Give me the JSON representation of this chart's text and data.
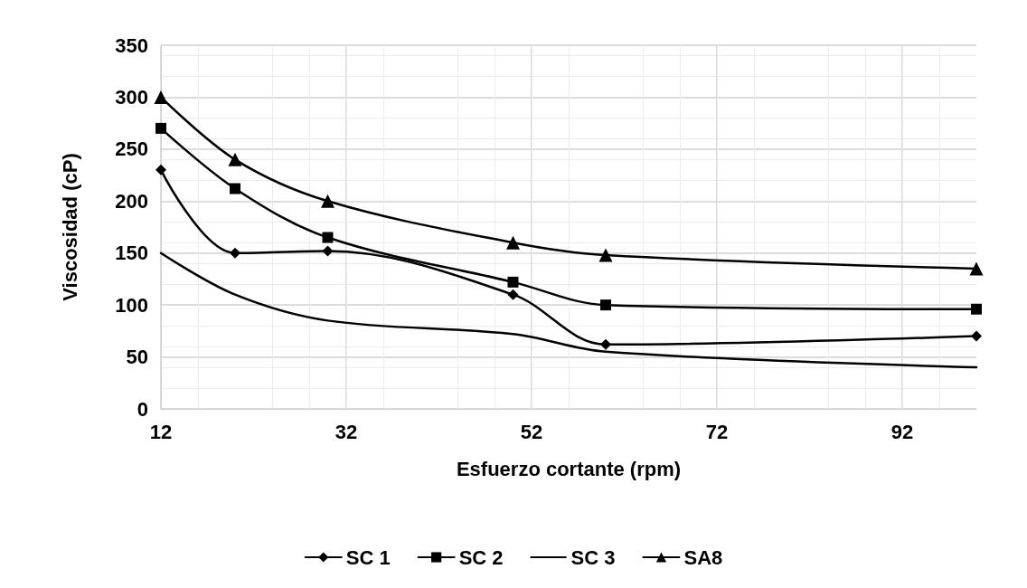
{
  "chart_data": {
    "type": "line",
    "xlabel": "Esfuerzo cortante (rpm)",
    "ylabel": "Viscosidad (cP)",
    "x": [
      12,
      20,
      30,
      50,
      60,
      100
    ],
    "xlim": [
      12,
      100
    ],
    "xticks": [
      12,
      32,
      52,
      72,
      92
    ],
    "ylim": [
      0,
      350
    ],
    "yticks": [
      0,
      50,
      100,
      150,
      200,
      250,
      300,
      350
    ],
    "grid": true,
    "legend": "bottom",
    "line_style": "solid",
    "series": [
      {
        "name": "SC 1",
        "color": "#000000",
        "marker": "diamond",
        "values": [
          230,
          150,
          152,
          110,
          62,
          70
        ]
      },
      {
        "name": "SC 2",
        "color": "#000000",
        "marker": "square",
        "values": [
          270,
          212,
          165,
          122,
          100,
          96
        ]
      },
      {
        "name": "SC 3",
        "color": "#000000",
        "marker": "none",
        "values": [
          150,
          110,
          85,
          72,
          55,
          40
        ]
      },
      {
        "name": "SA8",
        "color": "#000000",
        "marker": "triangle",
        "values": [
          300,
          240,
          200,
          160,
          148,
          135
        ]
      }
    ]
  }
}
